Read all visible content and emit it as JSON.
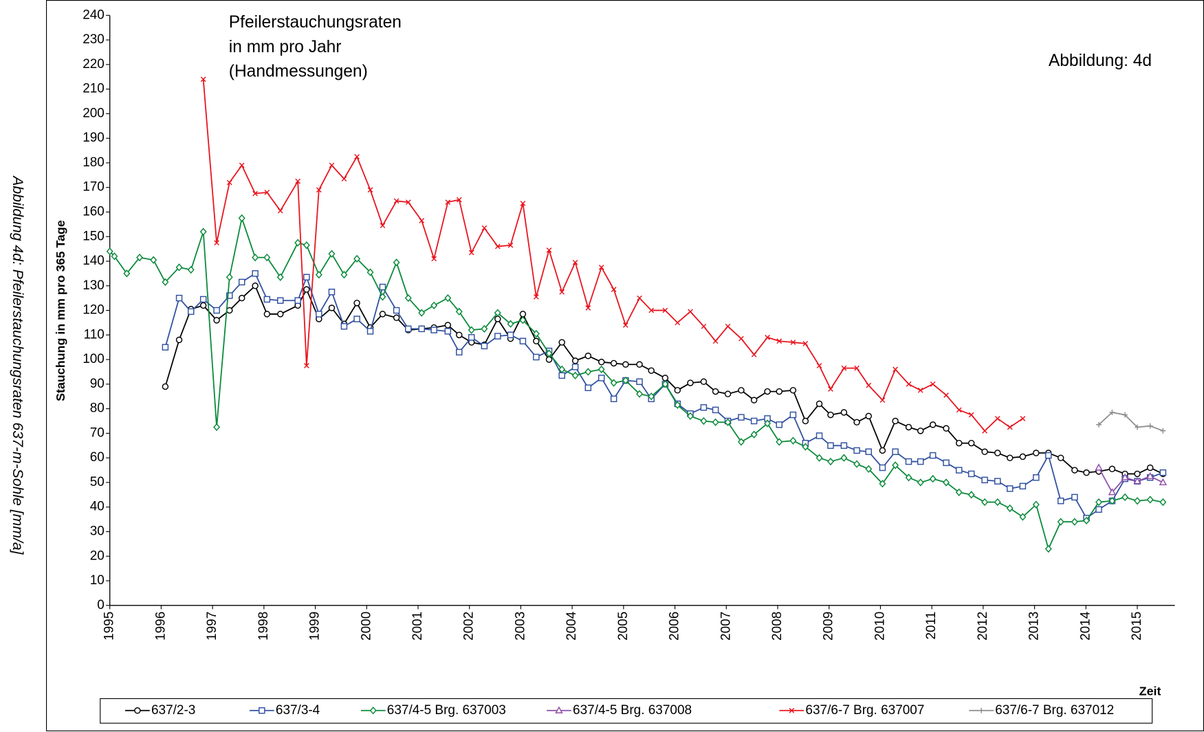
{
  "chart_data": {
    "type": "line",
    "title": "Pfeilerstauchungsraten",
    "subtitle": [
      "in mm pro Jahr",
      "(Handmessungen)"
    ],
    "annotation": "Abbildung:  4d",
    "caption": "Abbildung 4d: Pfeilerstauchungsraten 637-m-Sohle [mm/a]",
    "y_label": "Stauchung in mm pro 365 Tage",
    "x_label": "Zeit",
    "xlim": [
      1995,
      2015.73
    ],
    "xticks": [
      1995,
      1996,
      1997,
      1998,
      1999,
      2000,
      2001,
      2002,
      2003,
      2004,
      2005,
      2006,
      2007,
      2008,
      2009,
      2010,
      2011,
      2012,
      2013,
      2014,
      2015
    ],
    "ylim": [
      0,
      240
    ],
    "yticks": [
      0,
      10,
      20,
      30,
      40,
      50,
      60,
      70,
      80,
      90,
      100,
      110,
      120,
      130,
      140,
      150,
      160,
      170,
      180,
      190,
      200,
      210,
      220,
      230,
      240
    ],
    "grid": false,
    "legend": "bottom",
    "x": [
      1995,
      1995.09,
      1995.33,
      1995.58,
      1995.85,
      1996.08,
      1996.35,
      1996.58,
      1996.82,
      1997.08,
      1997.33,
      1997.57,
      1997.83,
      1998.06,
      1998.32,
      1998.66,
      1998.83,
      1999.07,
      1999.32,
      1999.56,
      1999.81,
      2000.07,
      2000.31,
      2000.58,
      2000.81,
      2001.07,
      2001.31,
      2001.58,
      2001.8,
      2002.04,
      2002.29,
      2002.55,
      2002.8,
      2003.04,
      2003.3,
      2003.55,
      2003.8,
      2004.06,
      2004.31,
      2004.57,
      2004.81,
      2005.04,
      2005.31,
      2005.54,
      2005.81,
      2006.05,
      2006.3,
      2006.56,
      2006.79,
      2007.03,
      2007.29,
      2007.54,
      2007.8,
      2008.03,
      2008.3,
      2008.54,
      2008.81,
      2009.03,
      2009.29,
      2009.54,
      2009.77,
      2010.04,
      2010.29,
      2010.55,
      2010.78,
      2011.02,
      2011.28,
      2011.53,
      2011.77,
      2012.03,
      2012.28,
      2012.52,
      2012.77,
      2013.03,
      2013.27,
      2013.51,
      2013.78,
      2014.01,
      2014.25,
      2014.51,
      2014.76,
      2015,
      2015.25,
      2015.5
    ],
    "series": [
      {
        "name": "637/2-3",
        "color": "#000000",
        "marker": "circle",
        "values": [
          null,
          null,
          null,
          null,
          null,
          89,
          108,
          120.5,
          122,
          116,
          120,
          125,
          130,
          118.5,
          118.5,
          122,
          128.5,
          116.5,
          121,
          114.5,
          123,
          113,
          118.5,
          117,
          112,
          112.5,
          113,
          114,
          110,
          107,
          106,
          116.5,
          108.5,
          118.5,
          107.5,
          100,
          107,
          99.5,
          101.5,
          99,
          98.5,
          98,
          98,
          95.5,
          92.5,
          87.5,
          90.5,
          91,
          87,
          86,
          87.5,
          83.5,
          87,
          87,
          87.5,
          75,
          82,
          77.5,
          78.5,
          74.5,
          77,
          63,
          75,
          72.5,
          71,
          73.5,
          72,
          66,
          66,
          62.5,
          62,
          60,
          60.5,
          62,
          62,
          60,
          55,
          54,
          54.5,
          55.5,
          53.5,
          53.5,
          56,
          53.5
        ]
      },
      {
        "name": "637/3-4",
        "color": "#3050a0",
        "marker": "square",
        "values": [
          null,
          null,
          null,
          null,
          null,
          105,
          125,
          119.5,
          124.5,
          120,
          126,
          131.5,
          135,
          124.5,
          124,
          124,
          133.5,
          118.5,
          127.5,
          113.5,
          116.5,
          111.5,
          129.5,
          120,
          112.5,
          112.5,
          112,
          111.5,
          103,
          109,
          105.5,
          109.5,
          110,
          107.5,
          101,
          103.5,
          93.5,
          97,
          88.5,
          92.5,
          84,
          91.5,
          91,
          84,
          90,
          82,
          78,
          80.5,
          79.5,
          75,
          76.5,
          75,
          76,
          73.5,
          77.5,
          66,
          69,
          65,
          65,
          63,
          62.5,
          56,
          62.5,
          58.5,
          58.5,
          61,
          58,
          55,
          53.5,
          51,
          50.5,
          47.5,
          48.5,
          52,
          61,
          42.5,
          44,
          35.5,
          39,
          42.5,
          51.5,
          50.5,
          52,
          54
        ]
      },
      {
        "name": "637/4-5 Brg. 637003",
        "color": "#0a8a3a",
        "marker": "diamond",
        "values": [
          144,
          142,
          135,
          141.5,
          140.5,
          131.5,
          137.5,
          136.5,
          152,
          72.5,
          133.5,
          157.5,
          141.5,
          141.5,
          133.5,
          147.5,
          146.5,
          134.5,
          143,
          134.5,
          141,
          135.5,
          125.5,
          139.5,
          125,
          119,
          122,
          125,
          119.5,
          112,
          112.5,
          119,
          114.5,
          116,
          110.5,
          102.5,
          96,
          93.5,
          95,
          96,
          90.5,
          91.5,
          86,
          85,
          90,
          81.5,
          77,
          75,
          74.5,
          74.5,
          66.5,
          69.5,
          74,
          66.5,
          67,
          64.5,
          60,
          58.5,
          60,
          57.5,
          55.5,
          49.5,
          57,
          52,
          50,
          51.5,
          50,
          46,
          45,
          42,
          42,
          39.5,
          36,
          41,
          23,
          34,
          34,
          34.5,
          42,
          42.5,
          44,
          42.5,
          43,
          42
        ]
      },
      {
        "name": "637/4-5 Brg. 637008",
        "color": "#8e4ea8",
        "marker": "triangle",
        "values": [
          null,
          null,
          null,
          null,
          null,
          null,
          null,
          null,
          null,
          null,
          null,
          null,
          null,
          null,
          null,
          null,
          null,
          null,
          null,
          null,
          null,
          null,
          null,
          null,
          null,
          null,
          null,
          null,
          null,
          null,
          null,
          null,
          null,
          null,
          null,
          null,
          null,
          null,
          null,
          null,
          null,
          null,
          null,
          null,
          null,
          null,
          null,
          null,
          null,
          null,
          null,
          null,
          null,
          null,
          null,
          null,
          null,
          null,
          null,
          null,
          null,
          null,
          null,
          null,
          null,
          null,
          null,
          null,
          null,
          null,
          null,
          null,
          null,
          null,
          null,
          null,
          null,
          null,
          56,
          46,
          52,
          50.5,
          52.5,
          50
        ]
      },
      {
        "name": "637/6-7 Brg. 637007",
        "color": "#e8141e",
        "marker": "x",
        "values": [
          null,
          null,
          null,
          null,
          null,
          null,
          null,
          null,
          214,
          147.5,
          172,
          179,
          167.5,
          168,
          160.5,
          172.5,
          97.5,
          169,
          179,
          173.5,
          182.5,
          169,
          154.5,
          164.5,
          164,
          156.5,
          141,
          164,
          165,
          143.5,
          153.5,
          146,
          146.5,
          163.5,
          125.5,
          144.5,
          127.5,
          139.5,
          121,
          137.5,
          128.5,
          114,
          125,
          120,
          120,
          115,
          119.5,
          113.5,
          107.5,
          113.5,
          108.5,
          102,
          109,
          107.5,
          107,
          106.5,
          97.5,
          88,
          96.5,
          96.5,
          89.5,
          83.5,
          96,
          90,
          87.5,
          90,
          85.5,
          79.5,
          77.5,
          71,
          76,
          72.5,
          76,
          null,
          null,
          null,
          null,
          null,
          null,
          null,
          null,
          null,
          null,
          null
        ]
      },
      {
        "name": "637/6-7 Brg. 637012",
        "color": "#8c8c8c",
        "marker": "plus",
        "values": [
          null,
          null,
          null,
          null,
          null,
          null,
          null,
          null,
          null,
          null,
          null,
          null,
          null,
          null,
          null,
          null,
          null,
          null,
          null,
          null,
          null,
          null,
          null,
          null,
          null,
          null,
          null,
          null,
          null,
          null,
          null,
          null,
          null,
          null,
          null,
          null,
          null,
          null,
          null,
          null,
          null,
          null,
          null,
          null,
          null,
          null,
          null,
          null,
          null,
          null,
          null,
          null,
          null,
          null,
          null,
          null,
          null,
          null,
          null,
          null,
          null,
          null,
          null,
          null,
          null,
          null,
          null,
          null,
          null,
          null,
          null,
          null,
          null,
          null,
          null,
          null,
          null,
          null,
          73.5,
          78.5,
          77.5,
          72.5,
          73,
          71
        ]
      }
    ]
  }
}
